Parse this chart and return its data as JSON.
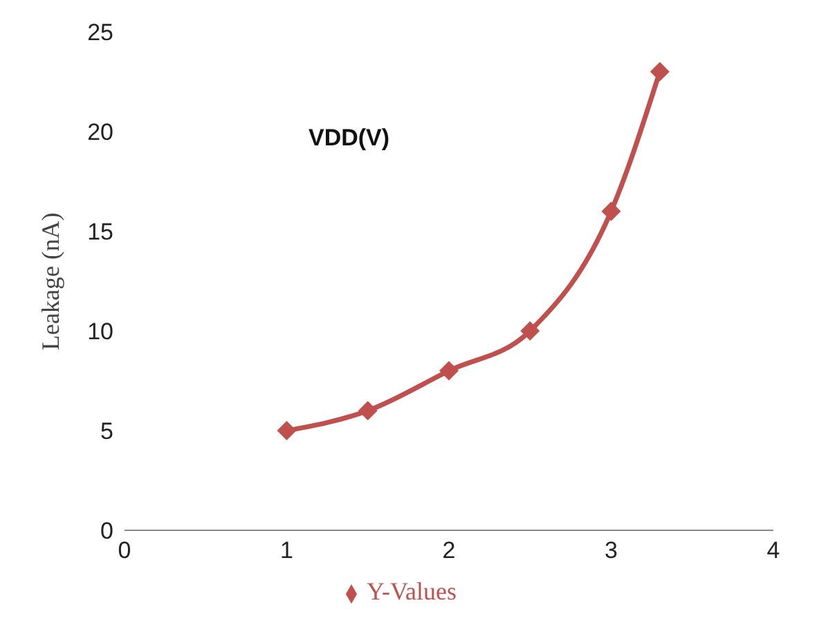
{
  "chart_data": {
    "type": "line",
    "ylabel": "Leakage (nA)",
    "annotations": [
      "VDD(V)"
    ],
    "x": [
      1,
      1.5,
      2,
      2.5,
      3,
      3.3
    ],
    "series": [
      {
        "name": "Y-Values",
        "color": "#c0504d",
        "values": [
          5,
          6,
          8,
          10,
          16,
          23
        ]
      }
    ],
    "xlim": [
      0,
      4
    ],
    "xticks": [
      0,
      1,
      2,
      3,
      4
    ],
    "ylim": [
      0,
      25
    ],
    "yticks": [
      0,
      5,
      10,
      15,
      20,
      25
    ],
    "grid": false,
    "legend": "bottom",
    "marker": "diamond",
    "line_style": "solid"
  }
}
